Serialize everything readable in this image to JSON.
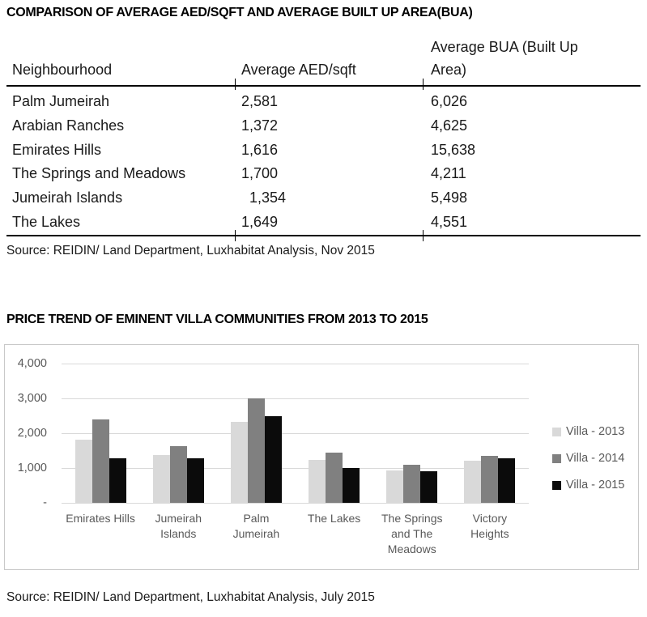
{
  "accent_colors": {
    "text": "#1a1a1a",
    "chart_text": "#595959",
    "gridline": "#d9d9d9",
    "chart_border": "#c9c9c9"
  },
  "chart_data": [
    {
      "type": "table",
      "title": "COMPARISON OF AVERAGE AED/SQFT AND AVERAGE BUILT UP AREA(BUA)",
      "columns": [
        "Neighbourhood",
        "Average AED/sqft",
        "Average BUA (Built Up Area)"
      ],
      "rows": [
        [
          "Palm Jumeirah",
          "2,581",
          "6,026"
        ],
        [
          "Arabian Ranches",
          "1,372",
          "4,625"
        ],
        [
          "Emirates Hills",
          "1,616",
          "15,638"
        ],
        [
          "The Springs and Meadows",
          "1,700",
          "4,211"
        ],
        [
          "Jumeirah Islands",
          "  1,354",
          "5,498"
        ],
        [
          "The Lakes",
          "1,649",
          "4,551"
        ]
      ],
      "source": "Source: REIDIN/ Land Department, Luxhabitat Analysis, Nov 2015"
    },
    {
      "type": "bar",
      "title": "PRICE TREND OF EMINENT VILLA COMMUNITIES FROM 2013 TO 2015",
      "categories": [
        "Emirates Hills",
        "Jumeirah\nIslands",
        "Palm\nJumeirah",
        "The Lakes",
        "The Springs\nand The\nMeadows",
        "Victory\nHeights"
      ],
      "series": [
        {
          "name": "Villa - 2013",
          "color": "#d9d9d9",
          "values": [
            1820,
            1380,
            2320,
            1230,
            930,
            1210
          ]
        },
        {
          "name": "Villa - 2014",
          "color": "#808080",
          "values": [
            2400,
            1630,
            3000,
            1440,
            1090,
            1350
          ]
        },
        {
          "name": "Villa - 2015",
          "color": "#0b0b0b",
          "values": [
            1270,
            1280,
            2500,
            1010,
            900,
            1290
          ]
        }
      ],
      "xlabel": "",
      "ylabel": "",
      "ylim": [
        0,
        4000
      ],
      "yticks": [
        "4,000",
        "3,000",
        "2,000",
        "1,000",
        "-"
      ],
      "grid": true,
      "legend_position": "right",
      "source": "Source: REIDIN/ Land Department, Luxhabitat Analysis, July 2015"
    }
  ]
}
